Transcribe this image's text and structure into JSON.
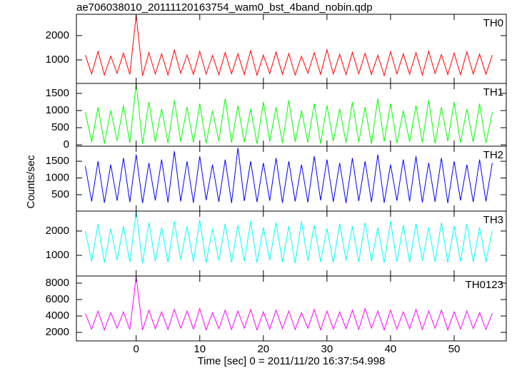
{
  "chart_data": [
    {
      "type": "line",
      "title": "ae706038010_20111120163754_wam0_bst_4band_nobin.qdp",
      "x": [
        -8,
        -7,
        -6,
        -5,
        -4,
        -3,
        -2,
        -1,
        0,
        1,
        2,
        3,
        4,
        5,
        6,
        7,
        8,
        9,
        10,
        11,
        12,
        13,
        14,
        15,
        16,
        17,
        18,
        19,
        20,
        21,
        22,
        23,
        24,
        25,
        26,
        27,
        28,
        29,
        30,
        31,
        32,
        33,
        34,
        35,
        36,
        37,
        38,
        39,
        40,
        41,
        42,
        43,
        44,
        45,
        46,
        47,
        48,
        49,
        50,
        51,
        52,
        53,
        54,
        55,
        56
      ],
      "series": [
        {
          "name": "TH0",
          "color": "#ff0000",
          "values": [
            1200,
            420,
            1350,
            380,
            1150,
            450,
            1280,
            400,
            2850,
            350,
            1300,
            420,
            1250,
            380,
            1400,
            450,
            1200,
            400,
            1350,
            420,
            1180,
            390,
            1300,
            430,
            1250,
            400,
            1380,
            370,
            1200,
            440,
            1320,
            410,
            1260,
            380,
            1150,
            450,
            1300,
            400,
            1420,
            420,
            1230,
            390,
            1310,
            430,
            1270,
            400,
            1190,
            360,
            1340,
            420,
            1250,
            410,
            1300,
            380,
            1360,
            440,
            1220,
            400,
            1280,
            390,
            1330,
            420,
            1240,
            410,
            1200
          ]
        }
      ],
      "ylim": [
        30,
        2880
      ],
      "yticks": [
        1000,
        2000
      ]
    },
    {
      "type": "line",
      "series": [
        {
          "name": "TH1",
          "color": "#00ff00",
          "values": [
            950,
            80,
            1100,
            40,
            1000,
            120,
            1150,
            60,
            1790,
            30,
            1250,
            90,
            1050,
            50,
            1300,
            100,
            1100,
            70,
            1200,
            40,
            1000,
            110,
            1350,
            60,
            1150,
            80,
            1050,
            30,
            1250,
            100,
            1100,
            50,
            1300,
            90,
            1000,
            70,
            1200,
            40,
            1150,
            110,
            1050,
            60,
            1250,
            80,
            1100,
            30,
            1350,
            100,
            1200,
            50,
            1000,
            90,
            1150,
            70,
            1300,
            40,
            1100,
            110,
            1250,
            60,
            1050,
            80,
            1200,
            50,
            950
          ]
        }
      ],
      "ylim": [
        -40,
        1790
      ],
      "yticks": [
        0,
        500,
        1000,
        1500
      ]
    },
    {
      "type": "line",
      "ylabel": "Counts/sec",
      "series": [
        {
          "name": "TH2",
          "color": "#0000ff",
          "values": [
            1350,
            300,
            1500,
            260,
            1400,
            320,
            1600,
            280,
            1700,
            250,
            1450,
            330,
            1550,
            270,
            1800,
            300,
            1500,
            260,
            1650,
            340,
            1400,
            290,
            1550,
            250,
            1900,
            310,
            1500,
            280,
            1450,
            320,
            1600,
            260,
            1500,
            300,
            1400,
            270,
            1650,
            330,
            1550,
            290,
            1450,
            250,
            1600,
            310,
            1500,
            280,
            1700,
            260,
            1400,
            320,
            1550,
            300,
            1650,
            270,
            1450,
            290,
            1600,
            250,
            1500,
            330,
            1400,
            280,
            1550,
            300,
            1450
          ]
        }
      ],
      "ylim": [
        10,
        1950
      ],
      "yticks": [
        500,
        1000,
        1500
      ]
    },
    {
      "type": "line",
      "series": [
        {
          "name": "TH3",
          "color": "#00ffff",
          "values": [
            2000,
            750,
            2300,
            700,
            2100,
            800,
            2200,
            720,
            2800,
            680,
            2350,
            760,
            2150,
            700,
            2400,
            820,
            2200,
            740,
            2450,
            690,
            2100,
            780,
            2300,
            710,
            2250,
            760,
            2400,
            700,
            2150,
            800,
            2350,
            720,
            2200,
            680,
            2400,
            770,
            2250,
            740,
            2100,
            700,
            2300,
            790,
            2200,
            720,
            2350,
            760,
            2150,
            690,
            2400,
            740,
            2250,
            710,
            2300,
            780,
            2150,
            730,
            2350,
            700,
            2200,
            760,
            2300,
            720,
            2150,
            740,
            2000
          ]
        }
      ],
      "ylim": [
        150,
        2820
      ],
      "yticks": [
        1000,
        2000
      ]
    },
    {
      "type": "line",
      "xlabel": "Time [sec] 0 = 2011/11/20 16:37:54.998",
      "series": [
        {
          "name": "TH0123",
          "color": "#ff00ff",
          "values": [
            4300,
            2400,
            4600,
            2300,
            4400,
            2500,
            4500,
            2350,
            8800,
            2300,
            4700,
            2450,
            4500,
            2350,
            4800,
            2500,
            4600,
            2400,
            4900,
            2300,
            4400,
            2450,
            4700,
            2350,
            4600,
            2500,
            4800,
            2300,
            4500,
            2400,
            4700,
            2450,
            4600,
            2350,
            4400,
            2500,
            4800,
            2300,
            4600,
            2400,
            4500,
            2450,
            4700,
            2350,
            4900,
            2500,
            4600,
            2300,
            4700,
            2400,
            4500,
            2450,
            4800,
            2350,
            4600,
            2500,
            4700,
            2300,
            4500,
            2400,
            4600,
            2450,
            4400,
            2350,
            4300
          ]
        }
      ],
      "ylim": [
        960,
        8870
      ],
      "yticks": [
        2000,
        4000,
        6000,
        8000
      ],
      "xlim": [
        -9.4,
        58.2
      ],
      "xticks": [
        0,
        10,
        20,
        30,
        40,
        50
      ]
    }
  ]
}
